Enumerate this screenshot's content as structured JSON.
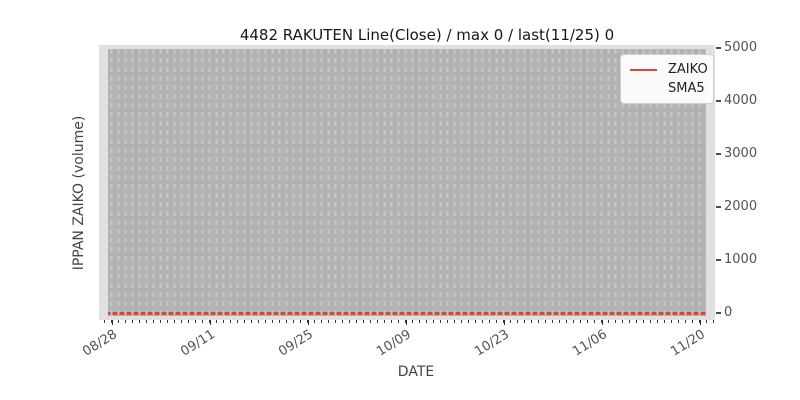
{
  "title": "4482 RAKUTEN Line(Close) / max 0 / last(11/25) 0",
  "axes": {
    "xlabel": "DATE",
    "ylabel": "IPPAN ZAIKO (volume)"
  },
  "legend": {
    "position": "upper right",
    "items": [
      {
        "label": "ZAIKO",
        "color": "#d8492f",
        "style": "solid"
      },
      {
        "label": "SMA5",
        "color": "#a9c9e8",
        "style": "dotted"
      }
    ]
  },
  "chart_data": {
    "type": "line",
    "title": "4482 RAKUTEN Line(Close) / max 0 / last(11/25) 0",
    "xlabel": "DATE",
    "ylabel": "IPPAN ZAIKO (volume)",
    "x_tick_labels": [
      "08/28",
      "09/11",
      "09/25",
      "10/09",
      "10/23",
      "11/06",
      "11/20"
    ],
    "x_range": [
      "08/28",
      "11/25"
    ],
    "y_ticks": [
      0,
      1000,
      2000,
      3000,
      4000,
      5000
    ],
    "ylim": [
      0,
      5000
    ],
    "y_axis_side": "right",
    "grid": "vertical dashed line per day, light gray on gray panel",
    "legend_position": "upper right",
    "series": [
      {
        "name": "ZAIKO",
        "color": "#d8492f",
        "line_style": "solid",
        "constant_value": 0,
        "values_at_ticks": [
          0,
          0,
          0,
          0,
          0,
          0,
          0
        ]
      },
      {
        "name": "SMA5",
        "color": "#a9c9e8",
        "line_style": "dotted",
        "constant_value": 0,
        "values_at_ticks": [
          0,
          0,
          0,
          0,
          0,
          0,
          0
        ]
      }
    ],
    "annotations": {
      "max": 0,
      "last_date": "11/25",
      "last_value": 0
    }
  },
  "colors": {
    "figure_bg": "#ffffff",
    "axes_margin_bg": "#e0e0e0",
    "panel_bg": "#b2b2b2",
    "grid_dash": "#c6c6c6",
    "zaiko_line": "#d8492f",
    "sma5_line": "#a9c9e8",
    "tick_label": "#525252",
    "title_text": "#171717"
  }
}
